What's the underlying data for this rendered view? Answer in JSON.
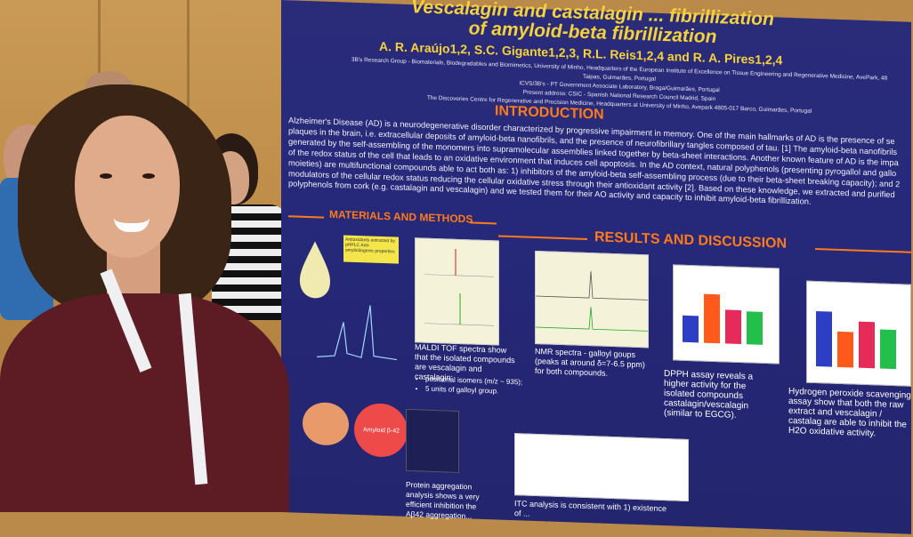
{
  "poster": {
    "title_line1": "Vescalagin and castalagin ... fibrillization",
    "title_line2": "of amyloid-beta fibrillization",
    "authors": "A. R. Araújo1,2, S.C. Gigante1,2,3, R.L. Reis1,2,4 and R. A. Pires1,2,4",
    "affiliations": [
      "3B's Research Group - Biomaterials, Biodegradables and Biomimetics, University of Minho, Headquarters of the European Institute of Excellence on Tissue Engineering and Regenerative Medicine, AvePark, 48",
      "Taipas, Guimarães, Portugal",
      "ICVS/3B's - PT Government Associate Laboratory, Braga/Guimarães, Portugal",
      "Present address: CSIC - Spanish National Research Council Madrid, Spain",
      "The Discoveries Centre for Regenerative and Precision Medicine, Headquarters at University of Minho, Avepark 4805-017 Barco, Guimarães, Portugal"
    ],
    "intro_title": "INTRODUCTION",
    "intro_text": "Alzheimer's Disease (AD) is a neurodegenerative disorder characterized by progressive impairment in memory. One of the main hallmarks of AD is the presence of se plaques in the brain, i.e. extracellular deposits of amyloid-beta nanofibrils, and the presence of neurofibrillary tangles composed of tau. [1] The amyloid-beta nanofibrils generated by the self-assembling of the monomers into supramolecular assemblies linked together by beta-sheet interactions. Another known feature of AD is the impa of the redox status of the cell that leads to an oxidative environment that induces cell apoptosis. In the AD context, natural polyphenols (presenting pyrogallol and gallo moieties) are multifunctional compounds able to act both as: 1) inhibitors of the amyloid-beta self-assembling process (due to their beta-sheet breaking capacity); and 2 modulators of the cellular redox status reducing the cellular oxidative stress through their antioxidant activity [2]. Based on these knowledge, we extracted and purified polyphenols from cork (e.g. castalagin and vescalagin) and we tested them for their AO activity and capacity to inhibit amyloid-beta fibrillization.",
    "methods_title": "MATERIALS AND METHODS",
    "results_title": "RESULTS AND DISCUSSION",
    "antioxidants_label": "Antioxidants extracted by pHPLC Anti-amyloidogenic properties",
    "maldi_caption": "MALDI TOF spectra show that the isolated compounds are vescalagin and castalagin:",
    "maldi_bullets": [
      "positional isomers (m/z ~ 935);",
      "5 units of galloyl group."
    ],
    "nmr_caption": "NMR spectra - galloyl goups (peaks at around δ=7-6.5 ppm) for both compounds.",
    "dpph_caption": "DPPH assay reveals a higher activity for the isolated compounds castalagin/vescalagin (similar to EGCG).",
    "h2o2_caption": "Hydrogen peroxide scavenging assay show that both the raw extract and vescalagin / castalag are able to inhibit the H2O oxidative activity.",
    "protein_caption": "Protein aggregation analysis shows a very efficient inhibition the Aβ42 aggregation...",
    "itc_caption": "ITC analysis is consistent with 1) existence of ...",
    "amyloid_label": "Amyloid β-42"
  },
  "colors": {
    "poster_bg": "#26287a",
    "title_yellow": "#f6d23a",
    "section_orange": "#ff7a1a",
    "shirt": "#5d1b24"
  }
}
